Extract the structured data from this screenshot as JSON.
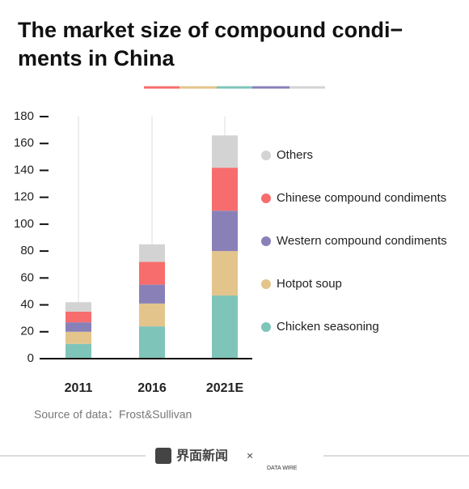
{
  "chart_data": {
    "type": "stacked-bar",
    "title": "The market size of compound condi−\nments in China",
    "categories": [
      "2011",
      "2016",
      "2021E"
    ],
    "series": [
      {
        "name": "Chicken seasoning",
        "color": "#7fc4b9",
        "values": [
          11,
          24,
          47
        ]
      },
      {
        "name": "Hotpot soup",
        "color": "#e3c48b",
        "values": [
          9,
          17,
          33
        ]
      },
      {
        "name": "Western compound condiments",
        "color": "#8a80b8",
        "values": [
          7,
          14,
          30
        ]
      },
      {
        "name": "Chinese compound condiments",
        "color": "#f76d6d",
        "values": [
          8,
          17,
          32
        ]
      },
      {
        "name": "Others",
        "color": "#d3d3d3",
        "values": [
          7,
          13,
          24
        ]
      }
    ],
    "ylim": [
      0,
      180
    ],
    "yticks": [
      0,
      20,
      40,
      60,
      80,
      100,
      120,
      140,
      160,
      180
    ],
    "grid": true,
    "source": "Source of data：Frost&Sullivan"
  },
  "footer": {
    "brand": "界面新闻",
    "separator": "×",
    "partner": "DATA WIRE"
  }
}
